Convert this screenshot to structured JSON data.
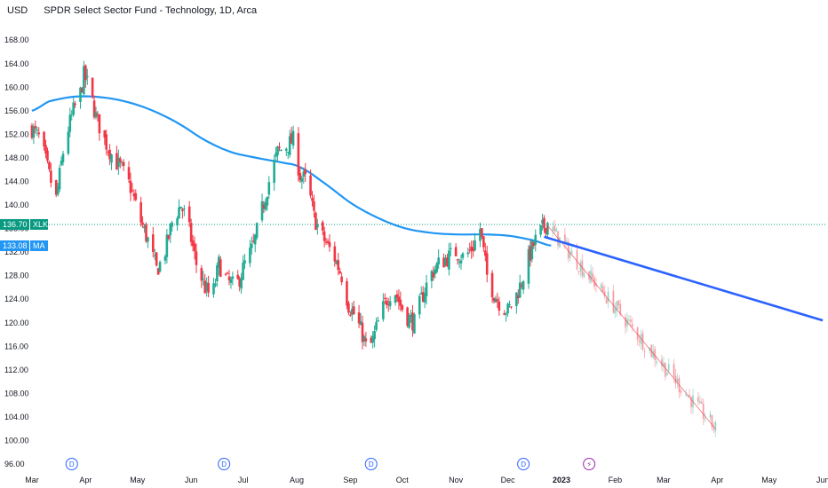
{
  "header": {
    "unit": "USD",
    "title": "SPDR Select Sector Fund - Technology, 1D, Arca"
  },
  "colors": {
    "up": "#22ab94",
    "down": "#f23645",
    "ma": "#2196f3",
    "trendline": "#2962ff",
    "last_price_bg": "#089981",
    "ma_bg": "#2196f3",
    "dividend": "#2962ff",
    "earnings": "#9c27b0"
  },
  "chart_data": {
    "type": "candlestick",
    "title": "SPDR Select Sector Fund - Technology, 1D, Arca",
    "symbol": "XLK",
    "ylabel": "USD",
    "ylim": [
      94.2,
      171.8
    ],
    "y_ticks": [
      "96.00",
      "100.00",
      "104.00",
      "108.00",
      "112.00",
      "116.00",
      "120.00",
      "124.00",
      "128.00",
      "132.00",
      "136.00",
      "140.00",
      "144.00",
      "148.00",
      "152.00",
      "156.00",
      "160.00",
      "164.00",
      "168.00"
    ],
    "x_labels": [
      {
        "label": "Mar",
        "t": 0,
        "bold": false
      },
      {
        "label": "Apr",
        "t": 31,
        "bold": false
      },
      {
        "label": "May",
        "t": 61,
        "bold": false
      },
      {
        "label": "Jun",
        "t": 92,
        "bold": false
      },
      {
        "label": "Jul",
        "t": 122,
        "bold": false
      },
      {
        "label": "Aug",
        "t": 153,
        "bold": false
      },
      {
        "label": "Sep",
        "t": 184,
        "bold": false
      },
      {
        "label": "Oct",
        "t": 214,
        "bold": false
      },
      {
        "label": "Nov",
        "t": 245,
        "bold": false
      },
      {
        "label": "Dec",
        "t": 275,
        "bold": false
      },
      {
        "label": "2023",
        "t": 306,
        "bold": true
      },
      {
        "label": "Feb",
        "t": 337,
        "bold": false
      },
      {
        "label": "Mar",
        "t": 365,
        "bold": false
      },
      {
        "label": "Apr",
        "t": 396,
        "bold": false
      },
      {
        "label": "May",
        "t": 426,
        "bold": false
      },
      {
        "label": "Jun",
        "t": 457,
        "bold": false
      }
    ],
    "price_anchors": [
      [
        0,
        153
      ],
      [
        5,
        151
      ],
      [
        10,
        145
      ],
      [
        14,
        141
      ],
      [
        19,
        151
      ],
      [
        24,
        156
      ],
      [
        28,
        159
      ],
      [
        30,
        162
      ],
      [
        33,
        160
      ],
      [
        37,
        155
      ],
      [
        42,
        151
      ],
      [
        47,
        148
      ],
      [
        52,
        146
      ],
      [
        57,
        143
      ],
      [
        62,
        138
      ],
      [
        67,
        134
      ],
      [
        72,
        129
      ],
      [
        76,
        131
      ],
      [
        81,
        137
      ],
      [
        86,
        140
      ],
      [
        90,
        137
      ],
      [
        95,
        130
      ],
      [
        100,
        126
      ],
      [
        104,
        124
      ],
      [
        108,
        130
      ],
      [
        113,
        127
      ],
      [
        118,
        126
      ],
      [
        123,
        130
      ],
      [
        128,
        133
      ],
      [
        132,
        138
      ],
      [
        137,
        144
      ],
      [
        142,
        149
      ],
      [
        147,
        150
      ],
      [
        151,
        151
      ],
      [
        155,
        145
      ],
      [
        159,
        144
      ],
      [
        163,
        138
      ],
      [
        167,
        135
      ],
      [
        171,
        133
      ],
      [
        175,
        131
      ],
      [
        179,
        128
      ],
      [
        183,
        123
      ],
      [
        187,
        121
      ],
      [
        191,
        118
      ],
      [
        194,
        115
      ],
      [
        197,
        117
      ],
      [
        201,
        121
      ],
      [
        205,
        124
      ],
      [
        209,
        126
      ],
      [
        213,
        123
      ],
      [
        217,
        121
      ],
      [
        221,
        120
      ],
      [
        225,
        124
      ],
      [
        230,
        128
      ],
      [
        235,
        130
      ],
      [
        240,
        131
      ],
      [
        245,
        132
      ],
      [
        250,
        131
      ],
      [
        255,
        133
      ],
      [
        259,
        136
      ],
      [
        263,
        128
      ],
      [
        267,
        125
      ],
      [
        271,
        123
      ],
      [
        275,
        122
      ],
      [
        279,
        124
      ],
      [
        283,
        127
      ],
      [
        287,
        131
      ],
      [
        291,
        134
      ],
      [
        295,
        136
      ],
      [
        298,
        137
      ]
    ],
    "projection": {
      "t0": 298,
      "v0": 136.5,
      "t1": 395,
      "v1": 102
    },
    "moving_average": [
      [
        0,
        156
      ],
      [
        10,
        157.6
      ],
      [
        25,
        158.4
      ],
      [
        40,
        158.3
      ],
      [
        55,
        157.5
      ],
      [
        70,
        156
      ],
      [
        85,
        153.8
      ],
      [
        100,
        151
      ],
      [
        115,
        149
      ],
      [
        130,
        148
      ],
      [
        145,
        147.2
      ],
      [
        155,
        146.4
      ],
      [
        170,
        143.5
      ],
      [
        185,
        140.2
      ],
      [
        200,
        137.8
      ],
      [
        215,
        136.1
      ],
      [
        230,
        135.3
      ],
      [
        245,
        135
      ],
      [
        260,
        135
      ],
      [
        275,
        134.8
      ],
      [
        290,
        134
      ],
      [
        300,
        133.1
      ]
    ],
    "trendline": {
      "t0": 296,
      "v0": 134.6,
      "t1": 457,
      "v1": 120.4
    },
    "last_price": {
      "value": "136.70",
      "symbol": "XLK"
    },
    "ma_value": {
      "value": "133.08",
      "label": "MA"
    },
    "events": [
      {
        "type": "dividend",
        "label": "D",
        "t": 23
      },
      {
        "type": "dividend",
        "label": "D",
        "t": 111
      },
      {
        "type": "dividend",
        "label": "D",
        "t": 196
      },
      {
        "type": "dividend",
        "label": "D",
        "t": 284
      },
      {
        "type": "earnings",
        "label": "⚡",
        "t": 322
      }
    ]
  }
}
